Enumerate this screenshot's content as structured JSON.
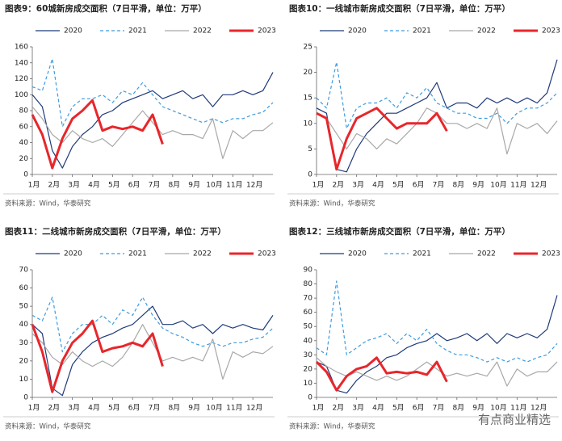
{
  "chart_data": [
    {
      "type": "line",
      "title": "图表9：60城新房成交面积（7日平滑，单位：万平）",
      "source": "资料来源：Wind，华泰研究",
      "x": [
        1,
        1.5,
        2,
        2.5,
        3,
        3.5,
        4,
        4.5,
        5,
        5.5,
        6,
        6.5,
        7,
        7.5,
        8,
        8.5,
        9,
        9.5,
        10,
        10.5,
        11,
        11.5,
        12,
        12.5,
        13
      ],
      "xlim": [
        1,
        13
      ],
      "xticks": [
        {
          "value": 1,
          "label": "1月"
        },
        {
          "value": 2,
          "label": "2月"
        },
        {
          "value": 3,
          "label": "3月"
        },
        {
          "value": 4,
          "label": "4月"
        },
        {
          "value": 5,
          "label": "5月"
        },
        {
          "value": 6,
          "label": "6月"
        },
        {
          "value": 7,
          "label": "7月"
        },
        {
          "value": 8,
          "label": "8月"
        },
        {
          "value": 9,
          "label": "9月"
        },
        {
          "value": 10,
          "label": "10月"
        },
        {
          "value": 11,
          "label": "11月"
        },
        {
          "value": 12,
          "label": "12月"
        }
      ],
      "ylim": [
        0,
        160
      ],
      "yticks": [
        0,
        20,
        40,
        60,
        80,
        100,
        120,
        140,
        160
      ],
      "series": [
        {
          "name": "2020",
          "color": "#1f3a7a",
          "dashed": false,
          "values": [
            100,
            85,
            30,
            8,
            35,
            50,
            60,
            75,
            80,
            90,
            95,
            100,
            105,
            95,
            100,
            105,
            95,
            100,
            85,
            100,
            100,
            105,
            100,
            105,
            128
          ]
        },
        {
          "name": "2021",
          "color": "#3d9be0",
          "dashed": true,
          "values": [
            110,
            105,
            145,
            60,
            85,
            95,
            95,
            100,
            90,
            105,
            100,
            115,
            100,
            85,
            80,
            75,
            70,
            65,
            70,
            65,
            70,
            70,
            75,
            78,
            90
          ]
        },
        {
          "name": "2022",
          "color": "#a8a8a8",
          "dashed": false,
          "values": [
            85,
            70,
            50,
            40,
            55,
            45,
            40,
            45,
            35,
            50,
            65,
            80,
            65,
            50,
            55,
            50,
            50,
            45,
            70,
            20,
            55,
            45,
            55,
            55,
            65
          ]
        },
        {
          "name": "2023",
          "color": "#e8262b",
          "dashed": false,
          "values": [
            75,
            50,
            8,
            45,
            70,
            80,
            93,
            55,
            60,
            57,
            60,
            55,
            75,
            38,
            null,
            null,
            null,
            null,
            null,
            null,
            null,
            null,
            null,
            null,
            null
          ]
        }
      ]
    },
    {
      "type": "line",
      "title": "图表10：一线城市新房成交面积（7日平滑，单位：万平）",
      "source": "资料来源：Wind，华泰研究",
      "x": [
        1,
        1.5,
        2,
        2.5,
        3,
        3.5,
        4,
        4.5,
        5,
        5.5,
        6,
        6.5,
        7,
        7.5,
        8,
        8.5,
        9,
        9.5,
        10,
        10.5,
        11,
        11.5,
        12,
        12.5,
        13
      ],
      "xlim": [
        1,
        13
      ],
      "xticks": [
        {
          "value": 1,
          "label": "1月"
        },
        {
          "value": 2,
          "label": "2月"
        },
        {
          "value": 3,
          "label": "3月"
        },
        {
          "value": 4,
          "label": "4月"
        },
        {
          "value": 5,
          "label": "5月"
        },
        {
          "value": 6,
          "label": "6月"
        },
        {
          "value": 7,
          "label": "7月"
        },
        {
          "value": 8,
          "label": "8月"
        },
        {
          "value": 9,
          "label": "9月"
        },
        {
          "value": 10,
          "label": "10月"
        },
        {
          "value": 11,
          "label": "11月"
        },
        {
          "value": 12,
          "label": "12月"
        }
      ],
      "ylim": [
        0,
        25
      ],
      "yticks": [
        0,
        5,
        10,
        15,
        20,
        25
      ],
      "series": [
        {
          "name": "2020",
          "color": "#1f3a7a",
          "dashed": false,
          "values": [
            13,
            12,
            1,
            0.5,
            5,
            8,
            10,
            12,
            12,
            13,
            14,
            15,
            18,
            13,
            14,
            14,
            13,
            15,
            14,
            15,
            14,
            15,
            14,
            16,
            22.5
          ]
        },
        {
          "name": "2021",
          "color": "#3d9be0",
          "dashed": true,
          "values": [
            15,
            13,
            22,
            9,
            13,
            14,
            14,
            15,
            13,
            16,
            15,
            17,
            14,
            13,
            12,
            12,
            11,
            11,
            12,
            10,
            12,
            13,
            13,
            14,
            16
          ]
        },
        {
          "name": "2022",
          "color": "#a8a8a8",
          "dashed": false,
          "values": [
            12,
            11,
            8,
            5,
            8,
            7,
            5,
            7,
            6,
            8,
            10,
            13,
            12,
            10,
            10,
            9,
            10,
            9,
            13,
            4,
            10,
            9,
            10,
            8,
            10.5
          ]
        },
        {
          "name": "2023",
          "color": "#e8262b",
          "dashed": false,
          "values": [
            12,
            11,
            1,
            7,
            11,
            12,
            13,
            11,
            9,
            10,
            10,
            10,
            12,
            8.5,
            null,
            null,
            null,
            null,
            null,
            null,
            null,
            null,
            null,
            null,
            null
          ]
        }
      ]
    },
    {
      "type": "line",
      "title": "图表11：二线城市新房成交面积（7日平滑，单位：万平）",
      "source": "资料来源：Wind，华泰研究",
      "x": [
        1,
        1.5,
        2,
        2.5,
        3,
        3.5,
        4,
        4.5,
        5,
        5.5,
        6,
        6.5,
        7,
        7.5,
        8,
        8.5,
        9,
        9.5,
        10,
        10.5,
        11,
        11.5,
        12,
        12.5,
        13
      ],
      "xlim": [
        1,
        13
      ],
      "xticks": [
        {
          "value": 1,
          "label": "1月"
        },
        {
          "value": 2,
          "label": "2月"
        },
        {
          "value": 3,
          "label": "3月"
        },
        {
          "value": 4,
          "label": "4月"
        },
        {
          "value": 5,
          "label": "5月"
        },
        {
          "value": 6,
          "label": "6月"
        },
        {
          "value": 7,
          "label": "7月"
        },
        {
          "value": 8,
          "label": "8月"
        },
        {
          "value": 9,
          "label": "9月"
        },
        {
          "value": 10,
          "label": "10月"
        },
        {
          "value": 11,
          "label": "11月"
        },
        {
          "value": 12,
          "label": "12月"
        }
      ],
      "ylim": [
        0,
        70
      ],
      "yticks": [
        0,
        10,
        20,
        30,
        40,
        50,
        60,
        70
      ],
      "series": [
        {
          "name": "2020",
          "color": "#1f3a7a",
          "dashed": false,
          "values": [
            40,
            35,
            5,
            1,
            18,
            25,
            30,
            33,
            35,
            38,
            40,
            45,
            50,
            40,
            40,
            42,
            38,
            40,
            35,
            40,
            38,
            40,
            38,
            37,
            45
          ]
        },
        {
          "name": "2021",
          "color": "#3d9be0",
          "dashed": true,
          "values": [
            45,
            42,
            55,
            25,
            35,
            40,
            40,
            45,
            40,
            48,
            45,
            55,
            45,
            38,
            35,
            33,
            30,
            28,
            30,
            28,
            30,
            30,
            32,
            33,
            38
          ]
        },
        {
          "name": "2022",
          "color": "#a8a8a8",
          "dashed": false,
          "values": [
            35,
            30,
            22,
            18,
            25,
            20,
            17,
            20,
            17,
            22,
            30,
            40,
            30,
            20,
            22,
            20,
            22,
            20,
            32,
            10,
            25,
            22,
            25,
            24,
            28
          ]
        },
        {
          "name": "2023",
          "color": "#e8262b",
          "dashed": false,
          "values": [
            40,
            25,
            3,
            20,
            30,
            35,
            42,
            25,
            27,
            28,
            30,
            28,
            35,
            17,
            null,
            null,
            null,
            null,
            null,
            null,
            null,
            null,
            null,
            null,
            null
          ]
        }
      ]
    },
    {
      "type": "line",
      "title": "图表12：三线城市新房成交面积（7日平滑，单位：万平）",
      "source": "资料来源：Wind，华泰研究",
      "x": [
        1,
        1.5,
        2,
        2.5,
        3,
        3.5,
        4,
        4.5,
        5,
        5.5,
        6,
        6.5,
        7,
        7.5,
        8,
        8.5,
        9,
        9.5,
        10,
        10.5,
        11,
        11.5,
        12,
        12.5,
        13
      ],
      "xlim": [
        1,
        13
      ],
      "xticks": [
        {
          "value": 1,
          "label": "1月"
        },
        {
          "value": 2,
          "label": "2月"
        },
        {
          "value": 3,
          "label": "3月"
        },
        {
          "value": 4,
          "label": "4月"
        },
        {
          "value": 5,
          "label": "5月"
        },
        {
          "value": 6,
          "label": "6月"
        },
        {
          "value": 7,
          "label": "7月"
        },
        {
          "value": 8,
          "label": "8月"
        },
        {
          "value": 9,
          "label": "9月"
        },
        {
          "value": 10,
          "label": "10月"
        },
        {
          "value": 11,
          "label": "11月"
        },
        {
          "value": 12,
          "label": "12月"
        }
      ],
      "ylim": [
        0,
        90
      ],
      "yticks": [
        0,
        10,
        20,
        30,
        40,
        50,
        60,
        70,
        80,
        90
      ],
      "series": [
        {
          "name": "2020",
          "color": "#1f3a7a",
          "dashed": false,
          "values": [
            25,
            22,
            5,
            3,
            12,
            18,
            22,
            28,
            30,
            35,
            38,
            40,
            45,
            40,
            42,
            45,
            40,
            45,
            38,
            45,
            42,
            45,
            42,
            48,
            72
          ]
        },
        {
          "name": "2021",
          "color": "#3d9be0",
          "dashed": true,
          "values": [
            35,
            30,
            82,
            30,
            35,
            40,
            42,
            45,
            38,
            45,
            40,
            48,
            38,
            33,
            30,
            30,
            28,
            25,
            28,
            25,
            28,
            25,
            28,
            30,
            38
          ]
        },
        {
          "name": "2022",
          "color": "#a8a8a8",
          "dashed": false,
          "values": [
            28,
            22,
            18,
            15,
            18,
            15,
            12,
            15,
            12,
            15,
            20,
            25,
            20,
            15,
            17,
            15,
            17,
            15,
            25,
            8,
            20,
            15,
            18,
            18,
            25
          ]
        },
        {
          "name": "2023",
          "color": "#e8262b",
          "dashed": false,
          "values": [
            25,
            18,
            5,
            15,
            20,
            22,
            28,
            17,
            18,
            17,
            18,
            16,
            25,
            11,
            null,
            null,
            null,
            null,
            null,
            null,
            null,
            null,
            null,
            null,
            null
          ]
        }
      ]
    }
  ],
  "watermark": "有点商业精选"
}
